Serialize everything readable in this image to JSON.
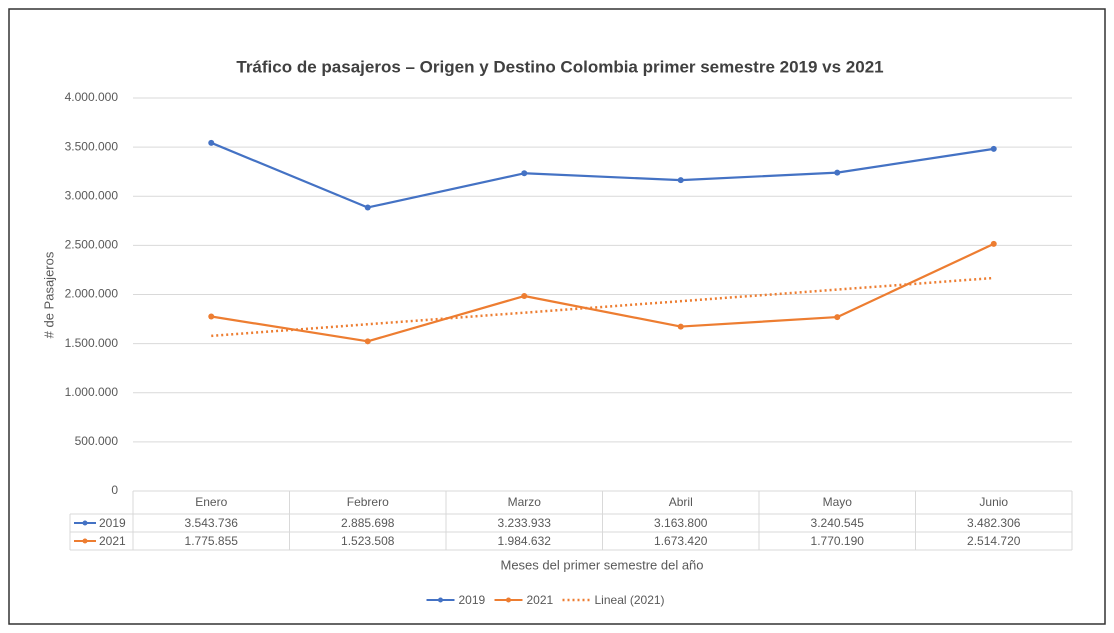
{
  "chart_data": {
    "type": "line",
    "title": "Tráfico de pasajeros – Origen y Destino Colombia primer semestre 2019 vs 2021",
    "x_label": "Meses del primer semestre del año",
    "y_label": "# de Pasajeros",
    "categories": [
      "Enero",
      "Febrero",
      "Marzo",
      "Abril",
      "Mayo",
      "Junio"
    ],
    "series": [
      {
        "name": "2019",
        "color": "#4472c4",
        "values": [
          3543736,
          2885698,
          3233933,
          3163800,
          3240545,
          3482306
        ],
        "value_labels": [
          "3.543.736",
          "2.885.698",
          "3.233.933",
          "3.163.800",
          "3.240.545",
          "3.482.306"
        ]
      },
      {
        "name": "2021",
        "color": "#ed7d31",
        "values": [
          1775855,
          1523508,
          1984632,
          1673420,
          1770190,
          2514720
        ],
        "value_labels": [
          "1.775.855",
          "1.523.508",
          "1.984.632",
          "1.673.420",
          "1.770.190",
          "2.514.720"
        ]
      },
      {
        "name": "Lineal (2021)",
        "color": "#ed7d31",
        "dashed": true,
        "values": [
          1579000,
          1697000,
          1815000,
          1932000,
          2050000,
          2168000
        ]
      }
    ],
    "ylim": [
      0,
      4000000
    ],
    "yticks": [
      0,
      {
        "value": 500000,
        "label": "500.000"
      },
      {
        "value": 1000000,
        "label": "1.000.000"
      },
      {
        "value": 1500000,
        "label": "1.500.000"
      },
      {
        "value": 2000000,
        "label": "2.000.000"
      },
      {
        "value": 2500000,
        "label": "2.500.000"
      },
      {
        "value": 3000000,
        "label": "3.000.000"
      },
      {
        "value": 3500000,
        "label": "3.500.000"
      },
      {
        "value": 4000000,
        "label": "4.000.000"
      }
    ],
    "grid": true,
    "legend": "bottom"
  }
}
